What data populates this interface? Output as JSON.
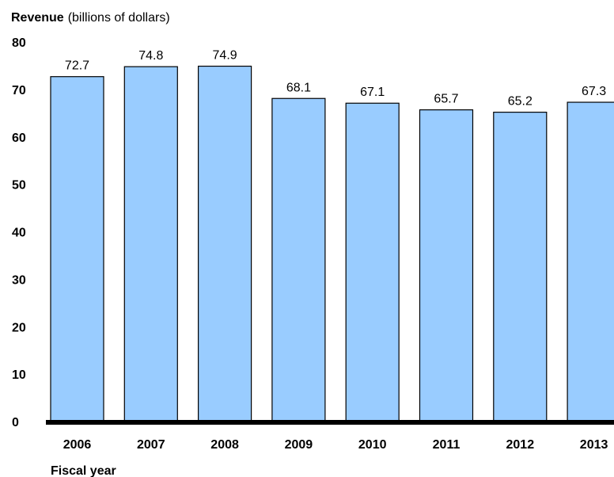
{
  "chart_data": {
    "type": "bar",
    "ylabel_bold": "Revenue",
    "ylabel_rest": "(billions of dollars)",
    "xlabel": "Fiscal year",
    "categories": [
      "2006",
      "2007",
      "2008",
      "2009",
      "2010",
      "2011",
      "2012",
      "2013"
    ],
    "values": [
      72.7,
      74.8,
      74.9,
      68.1,
      67.1,
      65.7,
      65.2,
      67.3
    ],
    "data_labels": [
      "72.7",
      "74.8",
      "74.9",
      "68.1",
      "67.1",
      "65.7",
      "65.2",
      "67.3"
    ],
    "ylim": [
      0,
      80
    ],
    "yticks": [
      "0",
      "10",
      "20",
      "30",
      "40",
      "50",
      "60",
      "70",
      "80"
    ],
    "grid": false,
    "colors": {
      "bar": "#99CCFF",
      "bar_stroke": "#000000",
      "baseline": "#000000"
    }
  }
}
